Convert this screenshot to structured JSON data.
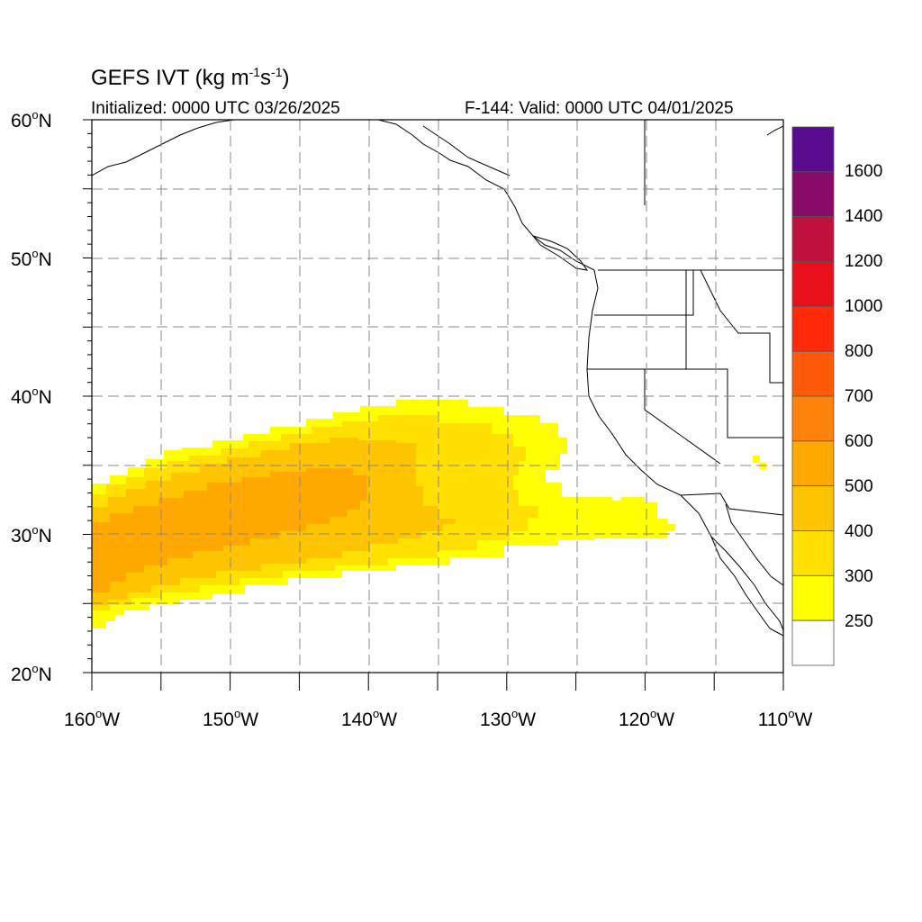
{
  "title": {
    "text": "GEFS IVT (kg m",
    "sup1": "-1",
    "mid": "s",
    "sup2": "-1",
    "end": ")"
  },
  "subtitle": {
    "initialized": "Initialized: 0000 UTC 03/26/2025",
    "valid": "F-144: Valid: 0000 UTC 04/01/2025"
  },
  "axes": {
    "lat_labels": [
      {
        "value": "60",
        "suffix": "N"
      },
      {
        "value": "50",
        "suffix": "N"
      },
      {
        "value": "40",
        "suffix": "N"
      },
      {
        "value": "30",
        "suffix": "N"
      },
      {
        "value": "20",
        "suffix": "N"
      }
    ],
    "lon_labels": [
      {
        "value": "160",
        "suffix": "W"
      },
      {
        "value": "150",
        "suffix": "W"
      },
      {
        "value": "140",
        "suffix": "W"
      },
      {
        "value": "130",
        "suffix": "W"
      },
      {
        "value": "120",
        "suffix": "W"
      },
      {
        "value": "110",
        "suffix": "W"
      }
    ],
    "lat_range": [
      20,
      60
    ],
    "lon_range": [
      -160,
      -110
    ],
    "grid": "dashed every 5 degrees"
  },
  "colorbar": {
    "labels": [
      "1600",
      "1400",
      "1200",
      "1000",
      "800",
      "700",
      "600",
      "500",
      "400",
      "300",
      "250"
    ],
    "colors": [
      "#5a0a8c",
      "#8a0a6a",
      "#c0103c",
      "#e8101a",
      "#ff2a0a",
      "#ff5a0a",
      "#ff820a",
      "#ffa800",
      "#ffc400",
      "#ffe000",
      "#ffff00",
      "#ffffff"
    ]
  },
  "chart_data": {
    "type": "heatmap",
    "variable": "Integrated Water Vapor Transport",
    "units": "kg m-1 s-1",
    "levels": [
      250,
      300,
      400,
      500,
      600,
      700,
      800,
      1000,
      1200,
      1400,
      1600
    ],
    "features": [
      {
        "band": "250-300",
        "description": "outer plume",
        "lon_extent": [
          -160,
          -117.5
        ],
        "lat_extent": [
          23,
          39.5
        ]
      },
      {
        "band": "300-400",
        "description": "plume body",
        "lon_extent": [
          -160,
          -130
        ],
        "lat_extent": [
          24.5,
          38
        ]
      },
      {
        "band": "400-500",
        "description": "inner plume",
        "lon_extent": [
          -160,
          -135
        ],
        "lat_extent": [
          25.5,
          36
        ]
      },
      {
        "band": "500-600",
        "description": "plume core",
        "lon_extent": [
          -160,
          -140
        ],
        "lat_extent": [
          26.5,
          33
        ]
      }
    ]
  }
}
